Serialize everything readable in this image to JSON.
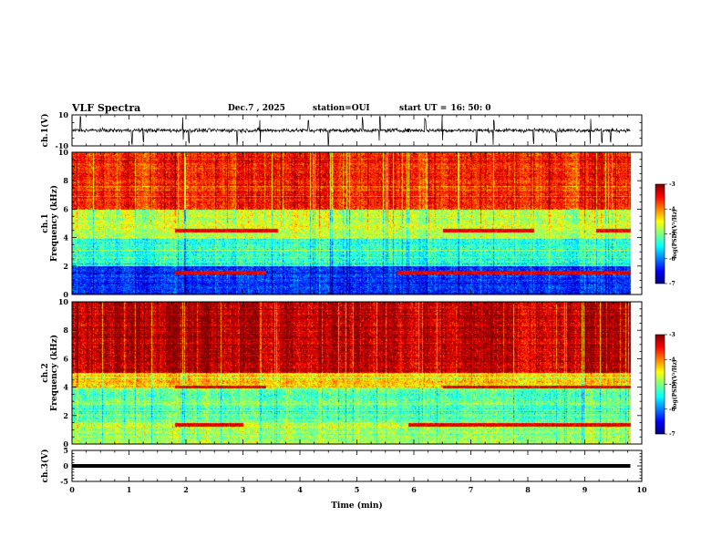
{
  "header": {
    "title": "VLF Spectra",
    "date": "Dec.7 , 2025",
    "station_label": "station=",
    "station": "OUI",
    "start_label": "start UT =",
    "start_value": "16: 50: 0"
  },
  "colors": {
    "colormap": [
      "#00007f",
      "#0000ff",
      "#007fff",
      "#00ffff",
      "#7fff7f",
      "#ffff00",
      "#ff7f00",
      "#ff0000",
      "#7f0000"
    ],
    "waveform": "#000000"
  },
  "chart_data": [
    {
      "type": "line",
      "panel": "ch1-waveform",
      "ylabel": "ch.1(V)",
      "ylim": [
        -10,
        10
      ],
      "yticks": [
        10,
        -10
      ],
      "xlim": [
        0,
        10
      ],
      "x_range_data": [
        0,
        9.8
      ],
      "baseline": 0,
      "amplitude_typical": 2,
      "spikes_x": [
        0.15,
        1.05,
        1.25,
        1.95,
        2.05,
        2.9,
        3.3,
        4.15,
        4.5,
        5.1,
        5.4,
        6.2,
        6.5,
        7.1,
        7.4,
        8.1,
        8.5,
        9.1,
        9.3,
        9.45
      ]
    },
    {
      "type": "heatmap",
      "panel": "ch1-spectrogram",
      "ylabel": "ch.1 Frequency (kHz)",
      "xlim": [
        0,
        10
      ],
      "x_range_data": [
        0,
        9.8
      ],
      "ylim": [
        0,
        10
      ],
      "yticks": [
        0,
        2,
        4,
        6,
        8,
        10
      ],
      "colorbar": {
        "label": "log(PSD)(V²/Hz)",
        "range": [
          -7,
          -3
        ],
        "ticks": [
          -3,
          -4,
          -5,
          -6,
          -7
        ]
      },
      "features": [
        {
          "name": "red-upper",
          "freq_khz": [
            6,
            10
          ],
          "level": -3.6
        },
        {
          "name": "transition",
          "freq_khz": [
            4,
            6
          ],
          "level": -4.7
        },
        {
          "name": "green-mid",
          "freq_khz": [
            2,
            4
          ],
          "level": -5.3
        },
        {
          "name": "blue-band",
          "freq_khz": [
            0.5,
            2
          ],
          "level": -6.3
        },
        {
          "name": "tone-4.5",
          "freq_khz": 4.5,
          "intervals_min": [
            [
              1.8,
              3.6
            ],
            [
              6.5,
              8.1
            ],
            [
              9.2,
              9.8
            ]
          ]
        },
        {
          "name": "tone-1.5",
          "freq_khz": 1.5,
          "intervals_min": [
            [
              1.8,
              3.4
            ],
            [
              5.7,
              9.8
            ]
          ]
        }
      ]
    },
    {
      "type": "heatmap",
      "panel": "ch2-spectrogram",
      "ylabel": "ch.2 Frequency (kHz)",
      "xlim": [
        0,
        10
      ],
      "x_range_data": [
        0,
        9.8
      ],
      "ylim": [
        0,
        10
      ],
      "yticks": [
        0,
        2,
        4,
        6,
        8,
        10
      ],
      "colorbar": {
        "label": "log(PSD)(V²/Hz)",
        "range": [
          -7,
          -3
        ],
        "ticks": [
          -3,
          -4,
          -5,
          -6,
          -7
        ]
      },
      "features": [
        {
          "name": "red-upper",
          "freq_khz": [
            5,
            10
          ],
          "level": -3.2
        },
        {
          "name": "transition",
          "freq_khz": [
            4,
            5
          ],
          "level": -4.3
        },
        {
          "name": "green-mid",
          "freq_khz": [
            1.5,
            4
          ],
          "level": -5.1
        },
        {
          "name": "low-band",
          "freq_khz": [
            0,
            1.5
          ],
          "level": -4.8
        },
        {
          "name": "tone-4.0",
          "freq_khz": 4.0,
          "intervals_min": [
            [
              1.8,
              3.4
            ],
            [
              6.5,
              9.8
            ]
          ]
        },
        {
          "name": "tone-1.3",
          "freq_khz": 1.3,
          "intervals_min": [
            [
              1.8,
              3.0
            ],
            [
              5.9,
              9.8
            ]
          ]
        }
      ]
    },
    {
      "type": "line",
      "panel": "ch3-waveform",
      "ylabel": "ch.3(V)",
      "ylim": [
        -5,
        5
      ],
      "yticks": [
        5,
        0,
        -5
      ],
      "xlim": [
        0,
        10
      ],
      "x_range_data": [
        0,
        9.8
      ],
      "constant_value": 0,
      "xlabel": "Time (min)",
      "xticks": [
        0,
        1,
        2,
        3,
        4,
        5,
        6,
        7,
        8,
        9,
        10
      ]
    }
  ]
}
